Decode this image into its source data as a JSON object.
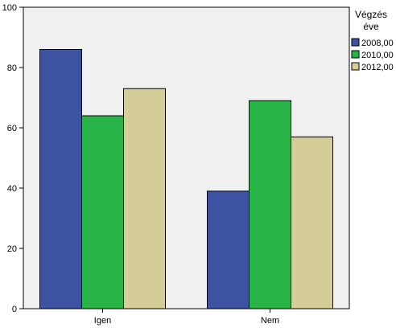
{
  "chart_data": {
    "type": "bar",
    "title": "",
    "xlabel": "",
    "ylabel": "",
    "categories": [
      "Igen",
      "Nem"
    ],
    "series": [
      {
        "name": "2008,00",
        "values": [
          86,
          39
        ],
        "color": "#3d52a1"
      },
      {
        "name": "2010,00",
        "values": [
          64,
          69
        ],
        "color": "#28b446"
      },
      {
        "name": "2012,00",
        "values": [
          73,
          57
        ],
        "color": "#d4cd98"
      }
    ],
    "ylim": [
      0,
      100
    ],
    "yticks": [
      0,
      20,
      40,
      60,
      80,
      100
    ],
    "grid": false,
    "legend": {
      "title_line1": "Végzés",
      "title_line2": "éve",
      "placement": "top-right"
    },
    "plot_background": "#f0f0f0"
  }
}
